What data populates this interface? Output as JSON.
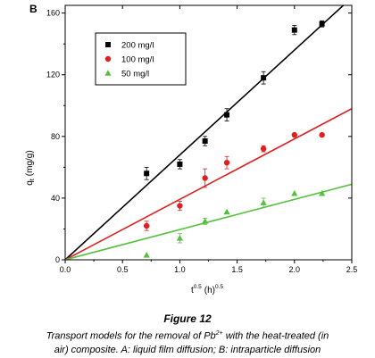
{
  "chart_data": {
    "type": "scatter",
    "panel_letter": "B",
    "ylabel": "q",
    "ylabel_sub": "t",
    "ylabel_unit": "(mg/g)",
    "xlabel": "t",
    "xlabel_sup": "0.5",
    "xlabel_unit": "(h)",
    "xlabel_unit_sup": "0.5",
    "xlim": [
      0.0,
      2.5
    ],
    "ylim": [
      0,
      165
    ],
    "xticks": [
      "0.0",
      "0.5",
      "1.0",
      "1.5",
      "2.0",
      "2.5"
    ],
    "xtick_values": [
      0.0,
      0.5,
      1.0,
      1.5,
      2.0,
      2.5
    ],
    "yticks": [
      "0",
      "40",
      "80",
      "120",
      "160"
    ],
    "ytick_values": [
      0,
      40,
      80,
      120,
      160
    ],
    "legend_position": "top-left",
    "series": [
      {
        "name": "200 mg/l",
        "color": "#000000",
        "marker": "square",
        "x": [
          0.71,
          1.0,
          1.22,
          1.41,
          1.73,
          2.0,
          2.24
        ],
        "y": [
          56,
          62,
          77,
          94,
          118,
          149,
          153
        ],
        "err": [
          4,
          3,
          3,
          4,
          4,
          3,
          2
        ],
        "fit": [
          [
            0.0,
            0.0
          ],
          [
            2.5,
            170
          ]
        ]
      },
      {
        "name": "100 mg/l",
        "color": "#e02020",
        "marker": "circle",
        "x": [
          0.71,
          1.0,
          1.22,
          1.41,
          1.73,
          2.0,
          2.24
        ],
        "y": [
          22,
          35,
          53,
          63,
          72,
          81,
          81
        ],
        "err": [
          3,
          3,
          6,
          4,
          2,
          0,
          0
        ],
        "fit": [
          [
            0.0,
            0.0
          ],
          [
            2.5,
            98
          ]
        ]
      },
      {
        "name": "50 mg/l",
        "color": "#55c040",
        "marker": "triangle",
        "x": [
          0.71,
          1.0,
          1.22,
          1.41,
          1.73,
          2.0,
          2.24
        ],
        "y": [
          3,
          14,
          25,
          31,
          37,
          43,
          43
        ],
        "err": [
          0,
          3,
          2,
          0,
          3,
          0,
          0
        ],
        "fit": [
          [
            0.0,
            0.0
          ],
          [
            2.5,
            49
          ]
        ]
      }
    ]
  },
  "caption": {
    "figure_label": "Figure 12",
    "line1_before": "Transport models for the removal of Pb",
    "line1_sup": "2+",
    "line1_after": " with the heat-treated (in",
    "line2": "air) composite. A: liquid film diffusion; B: intraparticle diffusion"
  }
}
